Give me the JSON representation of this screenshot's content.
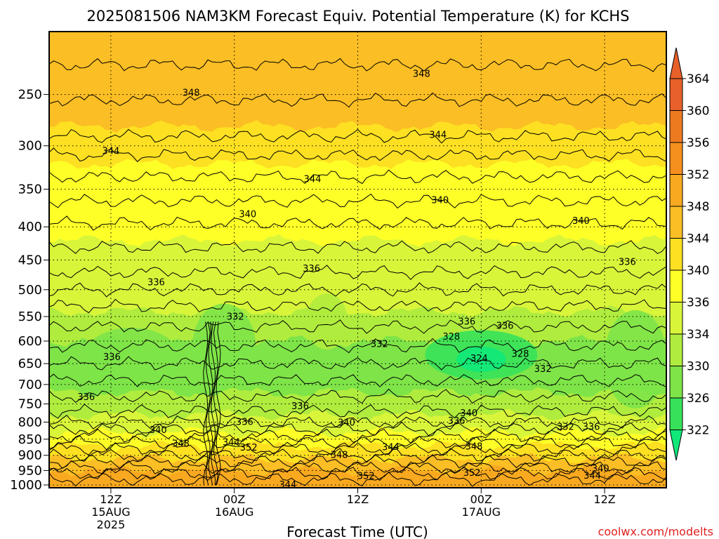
{
  "chart_data": {
    "type": "heatmap",
    "title": "2025081506 NAM3KM Forecast Equiv. Potential Temperature (K) for KCHS",
    "xlabel": "Forecast Time (UTC)",
    "ylabel": "",
    "credit": "coolwx.com/modelts",
    "x_ticks": [
      {
        "l1": "12Z",
        "l2": "15AUG",
        "l3": "2025",
        "h": 12
      },
      {
        "l1": "00Z",
        "l2": "16AUG",
        "l3": "",
        "h": 24
      },
      {
        "l1": "12Z",
        "l2": "",
        "l3": "",
        "h": 36
      },
      {
        "l1": "00Z",
        "l2": "17AUG",
        "l3": "",
        "h": 48
      },
      {
        "l1": "12Z",
        "l2": "",
        "l3": "",
        "h": 60
      }
    ],
    "xlim": [
      6,
      66
    ],
    "y_levels": [
      "250",
      "300",
      "350",
      "400",
      "450",
      "500",
      "550",
      "600",
      "650",
      "700",
      "750",
      "800",
      "850",
      "900",
      "950",
      "1000"
    ],
    "ylim": [
      200,
      1010
    ],
    "y_scale": "log",
    "colorbar": {
      "labels": [
        "364",
        "360",
        "356",
        "352",
        "348",
        "344",
        "340",
        "336",
        "334",
        "330",
        "326",
        "322"
      ],
      "colors": [
        "#e8602a",
        "#ee7a20",
        "#f58f1e",
        "#f9a91f",
        "#fbbe24",
        "#fde022",
        "#ffff28",
        "#d9f53a",
        "#b0ec3e",
        "#7ee448",
        "#37e25a",
        "#10e87a"
      ]
    },
    "bands": [
      {
        "level": 200,
        "theta": 350
      },
      {
        "level": 240,
        "theta": 348
      },
      {
        "level": 280,
        "theta": 345
      },
      {
        "level": 320,
        "theta": 343
      },
      {
        "level": 370,
        "theta": 341
      },
      {
        "level": 420,
        "theta": 339
      },
      {
        "level": 480,
        "theta": 337
      },
      {
        "level": 540,
        "theta": 335
      },
      {
        "level": 600,
        "theta": 333
      },
      {
        "level": 660,
        "theta": 332
      },
      {
        "level": 720,
        "theta": 334
      },
      {
        "level": 780,
        "theta": 337
      },
      {
        "level": 830,
        "theta": 340
      },
      {
        "level": 870,
        "theta": 344
      },
      {
        "level": 910,
        "theta": 348
      },
      {
        "level": 950,
        "theta": 352
      },
      {
        "level": 990,
        "theta": 355
      }
    ],
    "contour_labels": [
      {
        "text": "348",
        "h": 19.8,
        "p": 248
      },
      {
        "text": "348",
        "h": 42.2,
        "p": 232
      },
      {
        "text": "344",
        "h": 12,
        "p": 305
      },
      {
        "text": "344",
        "h": 43.8,
        "p": 288
      },
      {
        "text": "344",
        "h": 31.6,
        "p": 337
      },
      {
        "text": "340",
        "h": 25.3,
        "p": 382
      },
      {
        "text": "340",
        "h": 44,
        "p": 363
      },
      {
        "text": "340",
        "h": 57.7,
        "p": 391
      },
      {
        "text": "336",
        "h": 62.2,
        "p": 452
      },
      {
        "text": "336",
        "h": 16.4,
        "p": 486
      },
      {
        "text": "336",
        "h": 31.5,
        "p": 463
      },
      {
        "text": "336",
        "h": 46.6,
        "p": 559
      },
      {
        "text": "336",
        "h": 50.3,
        "p": 567
      },
      {
        "text": "336",
        "h": 12.1,
        "p": 634
      },
      {
        "text": "336",
        "h": 9.6,
        "p": 731
      },
      {
        "text": "336",
        "h": 30.4,
        "p": 755
      },
      {
        "text": "336",
        "h": 25,
        "p": 798
      },
      {
        "text": "336",
        "h": 45.6,
        "p": 795
      },
      {
        "text": "336",
        "h": 58.7,
        "p": 812
      },
      {
        "text": "332",
        "h": 24.1,
        "p": 549
      },
      {
        "text": "332",
        "h": 38.1,
        "p": 605
      },
      {
        "text": "332",
        "h": 54,
        "p": 661
      },
      {
        "text": "332",
        "h": 56.2,
        "p": 812
      },
      {
        "text": "328",
        "h": 45.1,
        "p": 590
      },
      {
        "text": "328",
        "h": 51.8,
        "p": 627
      },
      {
        "text": "324",
        "h": 47.8,
        "p": 637
      },
      {
        "text": "340",
        "h": 16.6,
        "p": 821
      },
      {
        "text": "340",
        "h": 34.9,
        "p": 800
      },
      {
        "text": "340",
        "h": 46.8,
        "p": 774
      },
      {
        "text": "340",
        "h": 59.6,
        "p": 942
      },
      {
        "text": "344",
        "h": 23.7,
        "p": 858
      },
      {
        "text": "344",
        "h": 39.2,
        "p": 873
      },
      {
        "text": "344",
        "h": 29.2,
        "p": 998
      },
      {
        "text": "344",
        "h": 58.8,
        "p": 966
      },
      {
        "text": "348",
        "h": 18.8,
        "p": 862
      },
      {
        "text": "348",
        "h": 34.2,
        "p": 897
      },
      {
        "text": "348",
        "h": 47.3,
        "p": 871
      },
      {
        "text": "352",
        "h": 25.4,
        "p": 874
      },
      {
        "text": "352",
        "h": 36.8,
        "p": 967
      },
      {
        "text": "352",
        "h": 47.1,
        "p": 956
      }
    ]
  }
}
